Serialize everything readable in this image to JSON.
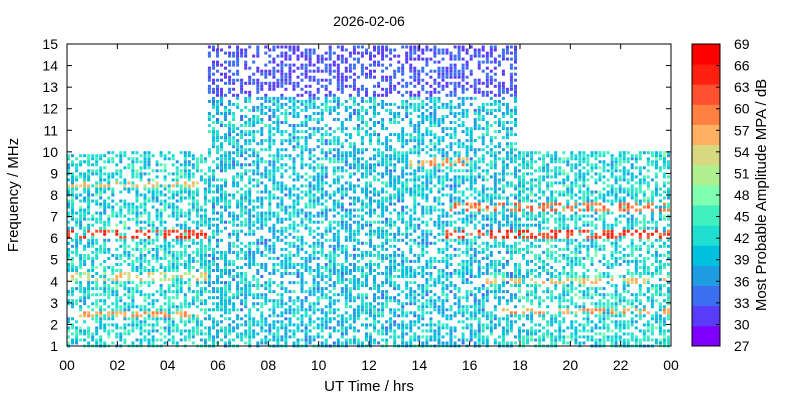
{
  "chart_data": {
    "type": "heatmap",
    "title": "2026-02-06",
    "xlabel": "UT Time / hrs",
    "ylabel": "Frequency / MHz",
    "xlim": [
      0,
      24
    ],
    "ylim": [
      1,
      15
    ],
    "x_ticks": [
      "00",
      "02",
      "04",
      "06",
      "08",
      "10",
      "12",
      "14",
      "16",
      "18",
      "20",
      "22",
      "00"
    ],
    "y_ticks": [
      "1",
      "2",
      "3",
      "4",
      "5",
      "6",
      "7",
      "8",
      "9",
      "10",
      "11",
      "12",
      "13",
      "14",
      "15"
    ],
    "colorbar": {
      "label": "Most Probable Amplitude MPA / dB",
      "min": 27,
      "max": 69,
      "ticks": [
        "69",
        "66",
        "63",
        "60",
        "57",
        "54",
        "51",
        "48",
        "45",
        "42",
        "39",
        "36",
        "33",
        "30",
        "27"
      ],
      "colors": [
        "#8000ff",
        "#5a3cf8",
        "#3c6ef0",
        "#1e9de3",
        "#00c0e0",
        "#20dfd0",
        "#40f0c0",
        "#80ffb0",
        "#b0f090",
        "#d8d880",
        "#ffb060",
        "#ff8040",
        "#ff5030",
        "#ff2010",
        "#ff0000"
      ]
    },
    "coverage": [
      {
        "t_start": 0.0,
        "t_end": 5.5,
        "f_min": 1,
        "f_max": 10,
        "typical_db": 42
      },
      {
        "t_start": 5.5,
        "t_end": 17.9,
        "f_min": 1,
        "f_max": 15,
        "typical_db": 40
      },
      {
        "t_start": 17.9,
        "t_end": 24.0,
        "f_min": 1,
        "f_max": 10,
        "typical_db": 42
      }
    ],
    "strong_bands": [
      {
        "t_start": 0.0,
        "t_end": 5.5,
        "freq": 6.2,
        "db": 66
      },
      {
        "t_start": 0.0,
        "t_end": 5.5,
        "freq": 2.5,
        "db": 60
      },
      {
        "t_start": 0.0,
        "t_end": 5.5,
        "freq": 4.2,
        "db": 56
      },
      {
        "t_start": 0.0,
        "t_end": 5.5,
        "freq": 8.5,
        "db": 58
      },
      {
        "t_start": 13.5,
        "t_end": 16.0,
        "freq": 9.5,
        "db": 60
      },
      {
        "t_start": 15.0,
        "t_end": 24.0,
        "freq": 6.2,
        "db": 66
      },
      {
        "t_start": 15.0,
        "t_end": 24.0,
        "freq": 7.4,
        "db": 63
      },
      {
        "t_start": 16.0,
        "t_end": 24.0,
        "freq": 4.0,
        "db": 58
      },
      {
        "t_start": 17.0,
        "t_end": 24.0,
        "freq": 2.6,
        "db": 60
      }
    ]
  }
}
